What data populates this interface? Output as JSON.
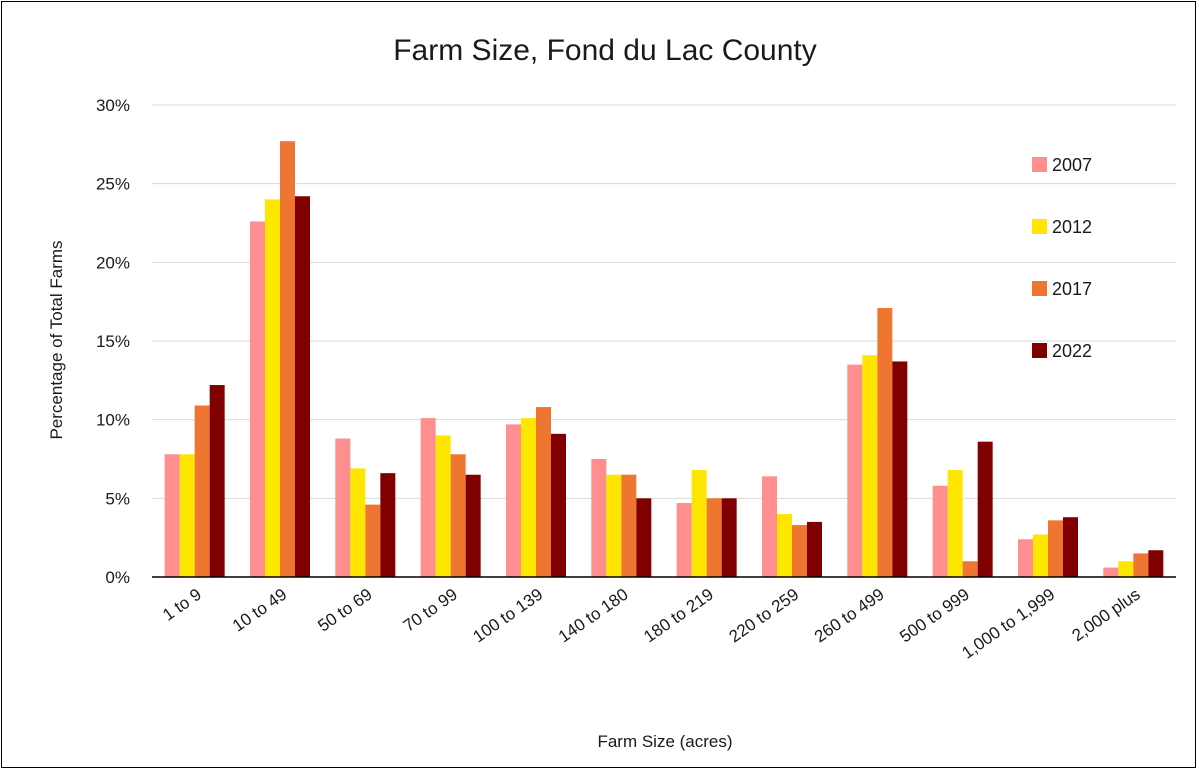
{
  "chart_data": {
    "type": "bar",
    "title": "Farm Size, Fond du Lac County",
    "xlabel": "Farm Size (acres)",
    "ylabel": "Percentage of Total Farms",
    "ylim": [
      0,
      30
    ],
    "yticks": [
      0,
      5,
      10,
      15,
      20,
      25,
      30
    ],
    "ytick_labels": [
      "0%",
      "5%",
      "10%",
      "15%",
      "20%",
      "25%",
      "30%"
    ],
    "grid": true,
    "legend_position": "right",
    "categories": [
      "1 to 9",
      "10 to 49",
      "50 to 69",
      "70 to 99",
      "100 to 139",
      "140 to 180",
      "180 to 219",
      "220 to 259",
      "260 to 499",
      "500 to 999",
      "1,000 to 1,999",
      "2,000 plus"
    ],
    "series": [
      {
        "name": "2007",
        "color": "#FF8F8F",
        "values": [
          7.8,
          22.6,
          8.8,
          10.1,
          9.7,
          7.5,
          4.7,
          6.4,
          13.5,
          5.8,
          2.4,
          0.6
        ]
      },
      {
        "name": "2012",
        "color": "#FFE600",
        "values": [
          7.8,
          24.0,
          6.9,
          9.0,
          10.1,
          6.5,
          6.8,
          4.0,
          14.1,
          6.8,
          2.7,
          1.0
        ]
      },
      {
        "name": "2017",
        "color": "#EF7630",
        "values": [
          10.9,
          27.7,
          4.6,
          7.8,
          10.8,
          6.5,
          5.0,
          3.3,
          17.1,
          1.0,
          3.6,
          1.5
        ]
      },
      {
        "name": "2022",
        "color": "#800000",
        "values": [
          12.2,
          24.2,
          6.6,
          6.5,
          9.1,
          5.0,
          5.0,
          3.5,
          13.7,
          8.6,
          3.8,
          1.7
        ]
      }
    ]
  }
}
